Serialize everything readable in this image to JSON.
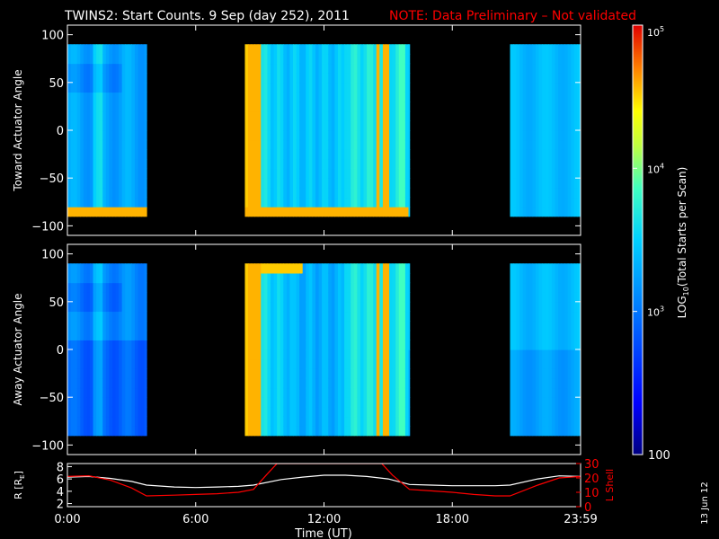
{
  "title": "TWINS2: Start Counts.  9 Sep (day 252), 2011",
  "note": "NOTE: Data Preliminary – Not validated",
  "footer_date": "13 Jun 12",
  "colors": {
    "background": "#000000",
    "axes": "#ffffff",
    "note": "#ff0000",
    "l_shell": "#ff0000",
    "r_line": "#ffffff"
  },
  "chart_data": [
    {
      "type": "heatmap",
      "ylabel": "Toward Actuator Angle",
      "ylim": [
        -110,
        110
      ],
      "yticks": [
        100,
        50,
        0,
        -50,
        -100
      ],
      "xlim": [
        0,
        24
      ],
      "data_bins_deg": [
        -90,
        90
      ],
      "data_intervals_hours": [
        [
          0,
          3.7
        ],
        [
          8.3,
          16.0
        ],
        [
          20.7,
          24
        ]
      ],
      "dominant_log10_value": 3.0,
      "high_count_bands_hours": [
        8.45,
        8.65,
        8.9,
        14.55,
        14.8,
        15.0
      ],
      "bottom_high_band_deg": [
        -90,
        -80
      ]
    },
    {
      "type": "heatmap",
      "ylabel": "Away Actuator Angle",
      "ylim": [
        -110,
        110
      ],
      "yticks": [
        100,
        50,
        0,
        -50,
        -100
      ],
      "xlim": [
        0,
        24
      ],
      "data_bins_deg": [
        -90,
        90
      ],
      "data_intervals_hours": [
        [
          0,
          3.7
        ],
        [
          8.3,
          16.0
        ],
        [
          20.7,
          24
        ]
      ],
      "dominant_log10_value": 2.8,
      "high_count_bands_hours": [
        8.45,
        8.65,
        8.9,
        14.55,
        14.8,
        15.0
      ],
      "top_high_band_deg": [
        80,
        90
      ]
    },
    {
      "type": "line",
      "x_label": "Time (UT)",
      "x_ticks": [
        "0:00",
        "6:00",
        "12:00",
        "18:00",
        "23:59"
      ],
      "xlim": [
        0,
        24
      ],
      "left_axis": {
        "label": "R [R",
        "label_sub": "E",
        "label_end": "]",
        "ylim": [
          1.5,
          8.5
        ],
        "ticks": [
          2,
          4,
          6,
          8
        ]
      },
      "right_axis": {
        "label": "L Shell",
        "ylim": [
          0,
          30
        ],
        "ticks": [
          0,
          10,
          20,
          30
        ]
      },
      "series": [
        {
          "axis": "left",
          "x": [
            0,
            1,
            2,
            3,
            3.7,
            5,
            6,
            7,
            8,
            8.7,
            10,
            11,
            12,
            13,
            14,
            15,
            16,
            17,
            18,
            19,
            20,
            20.7,
            22,
            23,
            24
          ],
          "y": [
            6.3,
            6.4,
            6.1,
            5.6,
            5.0,
            4.7,
            4.6,
            4.7,
            4.8,
            5.0,
            5.9,
            6.3,
            6.6,
            6.6,
            6.4,
            6.0,
            5.1,
            5.0,
            4.9,
            4.9,
            4.9,
            5.0,
            6.0,
            6.5,
            6.4
          ]
        },
        {
          "axis": "right",
          "x": [
            0,
            1,
            2,
            3,
            3.7,
            5,
            6,
            7,
            8,
            8.7,
            9.3,
            9.8,
            14.7,
            15.2,
            16,
            17,
            18,
            19,
            20,
            20.7,
            22,
            23,
            24
          ],
          "y": [
            21,
            21.5,
            18.5,
            13,
            7.5,
            8,
            8.5,
            9,
            10,
            12,
            22,
            30,
            30,
            22,
            12,
            11,
            10,
            8.5,
            7.5,
            7.5,
            15,
            20,
            21
          ]
        }
      ]
    }
  ],
  "colorbar": {
    "label_pre": "LOG",
    "label_sub": "10",
    "label_post": "(Total Starts per Scan)",
    "range_log10": [
      2,
      5
    ],
    "tick_base": "10",
    "ticks": [
      {
        "exp": "5",
        "log": 5
      },
      {
        "exp": "4",
        "log": 4
      },
      {
        "exp": "3",
        "log": 3
      }
    ],
    "bottom_tick": "100"
  }
}
